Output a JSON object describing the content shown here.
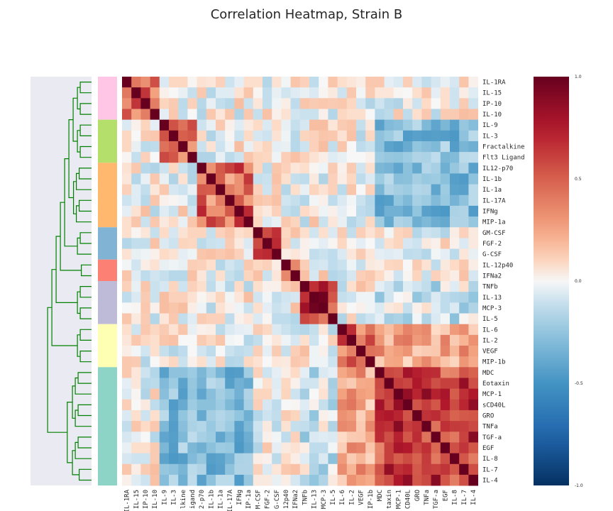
{
  "chart_data": {
    "type": "heatmap",
    "title": "Correlation Heatmap, Strain B",
    "labels": [
      "IL-1RA",
      "IL-15",
      "IP-10",
      "IL-10",
      "IL-9",
      "IL-3",
      "Fractalkine",
      "Flt3 Ligand",
      "IL12-p70",
      "IL-1b",
      "IL-1a",
      "IL-17A",
      "IFNg",
      "MIP-1a",
      "GM-CSF",
      "FGF-2",
      "G-CSF",
      "IL-12p40",
      "IFNa2",
      "TNFb",
      "IL-13",
      "MCP-3",
      "IL-5",
      "IL-6",
      "IL-2",
      "VEGF",
      "MIP-1b",
      "MDC",
      "Eotaxin",
      "MCP-1",
      "sCD40L",
      "GRO",
      "TNFa",
      "TGF-a",
      "EGF",
      "IL-8",
      "IL-7",
      "IL-4"
    ],
    "x_tick_labels": [
      "IL-1RA",
      "IL-15",
      "IP-10",
      "IL-10",
      "IL-9",
      "IL-3",
      "lkine",
      "igand",
      "2-p70",
      "IL-1b",
      "IL-1a",
      "IL-17A",
      "IFNg",
      "IP-1a",
      "M-CSF",
      "FGF-2",
      "G-CSF",
      "12p40",
      "IFNa2",
      "TNFb",
      "IL-13",
      "MCP-3",
      "IL-5",
      "IL-6",
      "IL-2",
      "VEGF",
      "IP-1b",
      "MDC",
      "taxin",
      "MCP-1",
      "CD40L",
      "GRO",
      "TNFa",
      "TGF-a",
      "EGF",
      "IL-8",
      "IL-7",
      "IL-4"
    ],
    "clusters": [
      {
        "start": 0,
        "end": 3,
        "color": "#ffc6e5"
      },
      {
        "start": 4,
        "end": 7,
        "color": "#b5df6b"
      },
      {
        "start": 8,
        "end": 13,
        "color": "#ffb86e"
      },
      {
        "start": 14,
        "end": 16,
        "color": "#80b3d4"
      },
      {
        "start": 17,
        "end": 18,
        "color": "#fc8073"
      },
      {
        "start": 19,
        "end": 22,
        "color": "#bebbd9"
      },
      {
        "start": 23,
        "end": 26,
        "color": "#ffffb3"
      },
      {
        "start": 27,
        "end": 37,
        "color": "#8ed4c6"
      }
    ],
    "colorbar": {
      "min": -1.0,
      "max": 1.0,
      "ticks": [
        "1.0",
        "0.5",
        "0.0",
        "-0.5",
        "-1.0"
      ]
    },
    "colors": {
      "dendrogram": "#008000",
      "dendro_bg": "#eaeaf2",
      "high": "#67001f",
      "mid": "#f7f7f7",
      "low": "#053061"
    },
    "values_note_seed": 7
  }
}
